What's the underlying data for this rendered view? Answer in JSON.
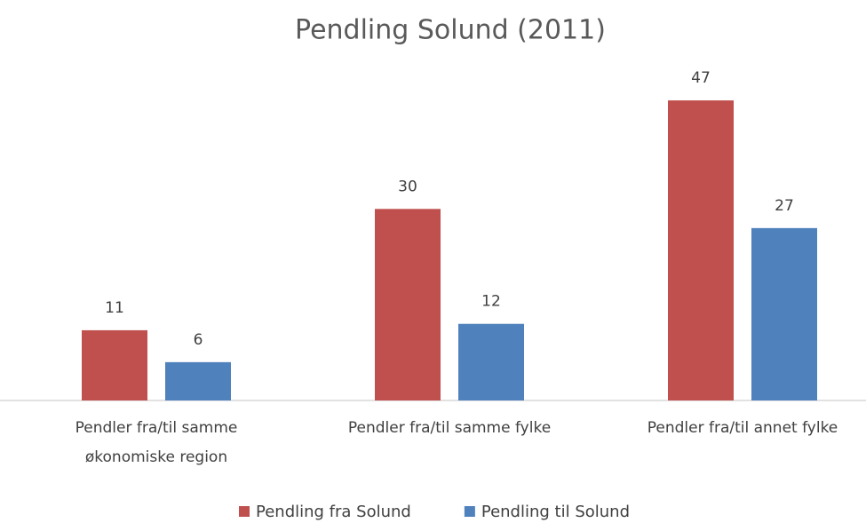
{
  "chart_data": {
    "type": "bar",
    "title": "Pendling Solund (2011)",
    "categories": [
      "Pendler fra/til samme økonomiske region",
      "Pendler fra/til samme fylke",
      "Pendler fra/til annet fylke"
    ],
    "series": [
      {
        "name": "Pendling fra Solund",
        "color": "#c0504d",
        "values": [
          11,
          30,
          47
        ]
      },
      {
        "name": "Pendling til Solund",
        "color": "#4f81bd",
        "values": [
          6,
          12,
          27
        ]
      }
    ],
    "legend": "bottom"
  }
}
